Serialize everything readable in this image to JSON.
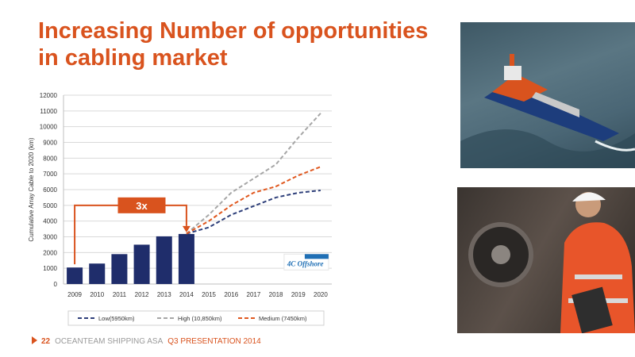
{
  "slide": {
    "title": "Increasing Number of opportunities in cabling market",
    "footer": {
      "page_number": "22",
      "company": "OCEANTEAM SHIPPING ASA",
      "presentation": "Q3 PRESENTATION 2014"
    }
  },
  "colors": {
    "accent": "#d9531e",
    "bar": "#1f2d6b",
    "low": "#2e3f7a",
    "high": "#a6a6a6",
    "medium": "#e0581f"
  },
  "chart_data": {
    "type": "bar",
    "ylabel": "Cumulative Array Cable to 2020 (km)",
    "ylim": [
      0,
      12000
    ],
    "yticks": [
      0,
      1000,
      2000,
      3000,
      4000,
      5000,
      6000,
      7000,
      8000,
      9000,
      10000,
      11000,
      12000
    ],
    "categories": [
      "2009",
      "2010",
      "2011",
      "2012",
      "2013",
      "2014",
      "2015",
      "2016",
      "2017",
      "2018",
      "2019",
      "2020"
    ],
    "bars": [
      {
        "x": "2009",
        "value": 1050
      },
      {
        "x": "2010",
        "value": 1300
      },
      {
        "x": "2011",
        "value": 1900
      },
      {
        "x": "2012",
        "value": 2500
      },
      {
        "x": "2013",
        "value": 3030
      },
      {
        "x": "2014",
        "value": 3180
      }
    ],
    "series": [
      {
        "name": "Low(5950km)",
        "style": "dashed",
        "color": "#2e3f7a",
        "points": [
          [
            "2014",
            3200
          ],
          [
            "2015",
            3600
          ],
          [
            "2016",
            4400
          ],
          [
            "2017",
            4950
          ],
          [
            "2018",
            5500
          ],
          [
            "2019",
            5800
          ],
          [
            "2020",
            5950
          ]
        ]
      },
      {
        "name": "High (10,850km)",
        "style": "dashed",
        "color": "#a6a6a6",
        "points": [
          [
            "2014",
            3200
          ],
          [
            "2015",
            4400
          ],
          [
            "2016",
            5800
          ],
          [
            "2017",
            6700
          ],
          [
            "2018",
            7600
          ],
          [
            "2019",
            9300
          ],
          [
            "2020",
            10850
          ]
        ]
      },
      {
        "name": "Medium (7450km)",
        "style": "dashed",
        "color": "#e0581f",
        "points": [
          [
            "2014",
            3200
          ],
          [
            "2015",
            4000
          ],
          [
            "2016",
            5000
          ],
          [
            "2017",
            5800
          ],
          [
            "2018",
            6200
          ],
          [
            "2019",
            6900
          ],
          [
            "2020",
            7450
          ]
        ]
      }
    ],
    "annotation": {
      "label": "3x",
      "from": "2009",
      "to": "2014"
    },
    "logo_text": "4C Offshore",
    "grid": true,
    "legend": "bottom"
  }
}
